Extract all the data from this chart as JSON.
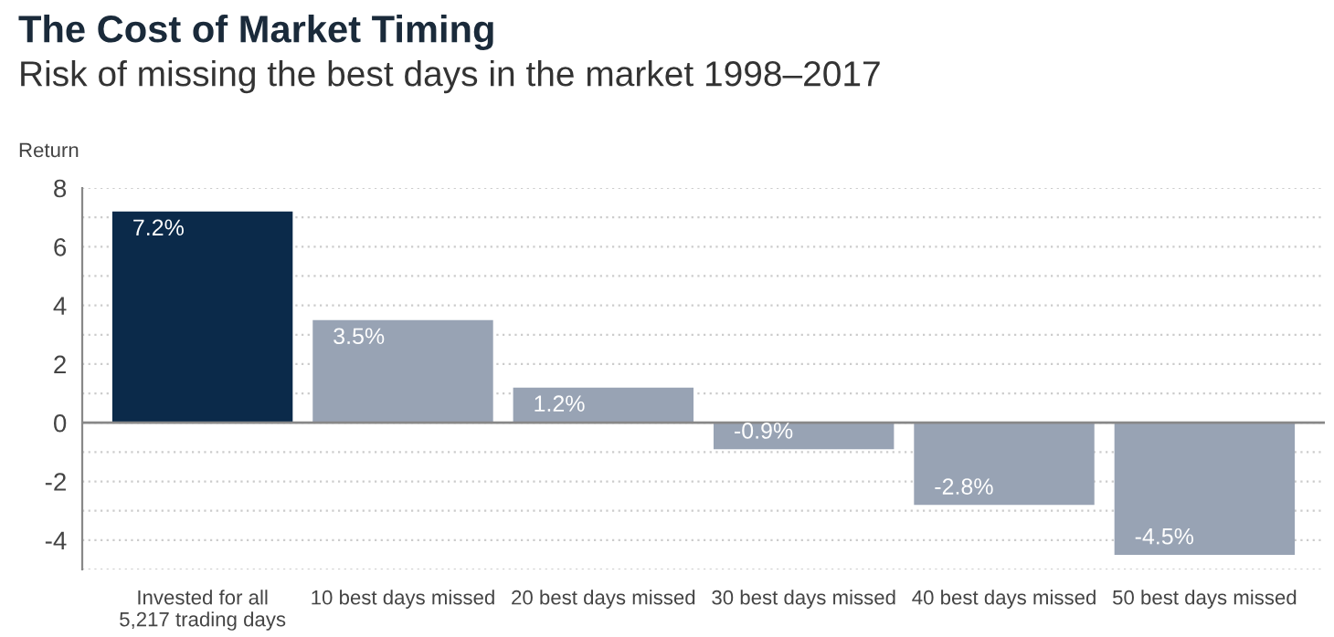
{
  "chart_data": {
    "type": "bar",
    "title": "The Cost of Market Timing",
    "subtitle": "Risk of missing the best days in the market 1998–2017",
    "ylabel": "Return",
    "categories": [
      "Invested for all\n5,217 trading days",
      "10 best days missed",
      "20 best days missed",
      "30 best days missed",
      "40 best days missed",
      "50 best days missed"
    ],
    "values": [
      7.2,
      3.5,
      1.2,
      -0.9,
      -2.8,
      -4.5
    ],
    "colors": [
      "#0b2a4a",
      "#98a3b4",
      "#98a3b4",
      "#98a3b4",
      "#98a3b4",
      "#98a3b4"
    ],
    "value_labels": [
      "7.2%",
      "3.5%",
      "1.2%",
      "-0.9%",
      "-2.8%",
      "-4.5%"
    ],
    "ylim": [
      -5,
      8
    ],
    "yticks": [
      {
        "value": -5,
        "label": null
      },
      {
        "value": -4,
        "label": "-4"
      },
      {
        "value": -3,
        "label": null
      },
      {
        "value": -2,
        "label": "-2"
      },
      {
        "value": -1,
        "label": null
      },
      0,
      {
        "value": 1,
        "label": null
      },
      2,
      {
        "value": 3,
        "label": null
      },
      4,
      {
        "value": 5,
        "label": null
      },
      6,
      {
        "value": 7,
        "label": null
      },
      8
    ],
    "grid": "y"
  }
}
